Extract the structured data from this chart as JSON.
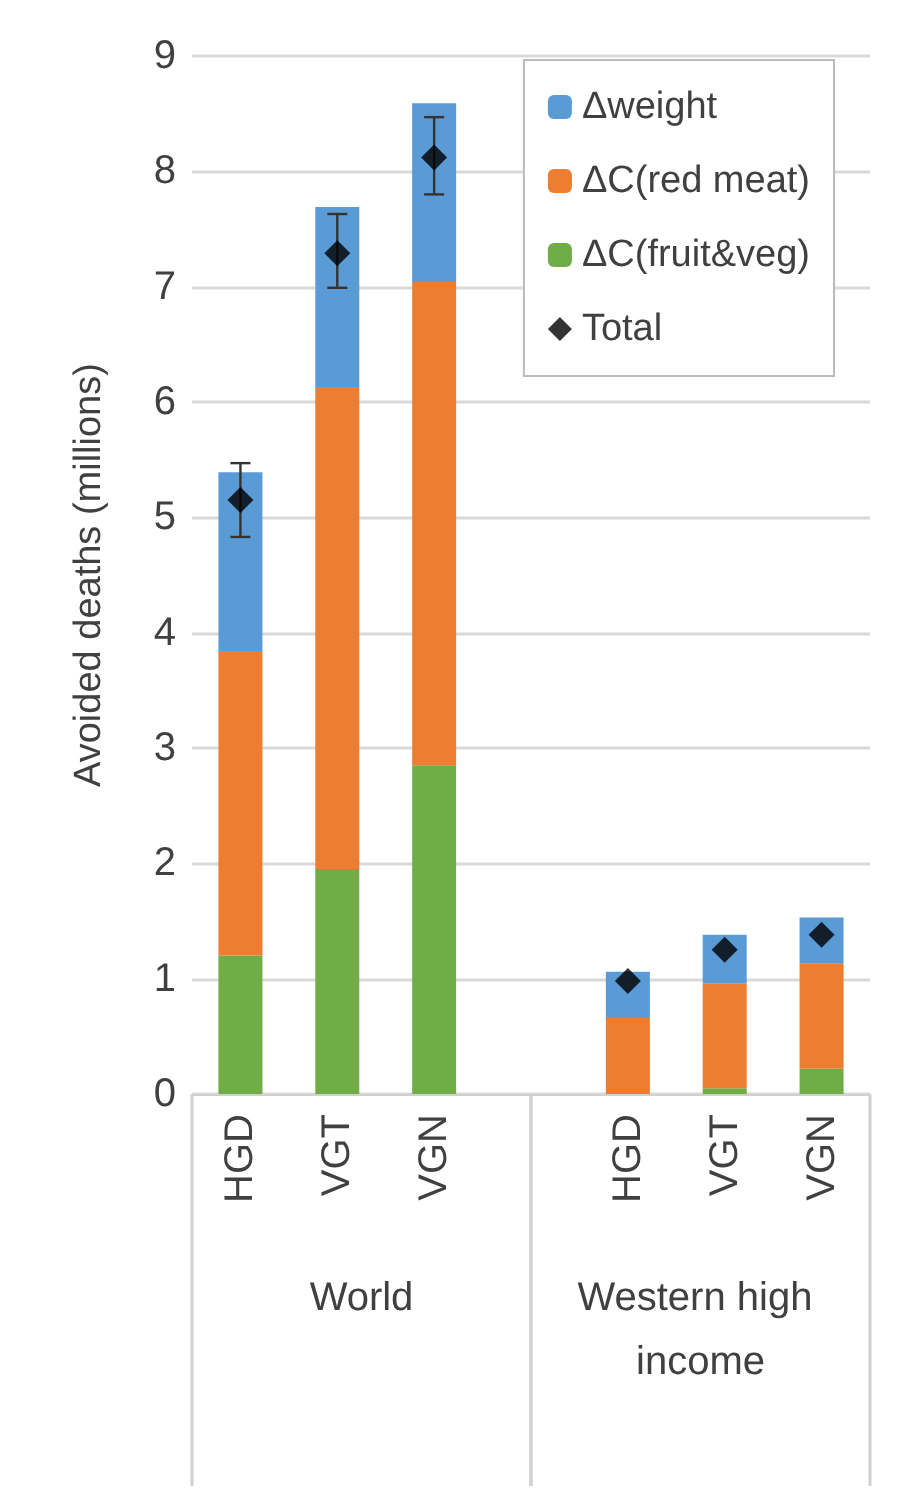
{
  "chart_data": {
    "type": "bar",
    "stacked": true,
    "ylabel": "Avoided deaths (millions)",
    "categories": [
      "HGD",
      "VGT",
      "VGN",
      null,
      "HGD",
      "VGT",
      "VGN"
    ],
    "series": [
      {
        "name": "ΔC(fruit&veg)",
        "color": "#70ad47",
        "values": [
          1.2,
          1.95,
          2.85,
          null,
          0,
          0.05,
          0.22
        ]
      },
      {
        "name": "ΔC(red meat)",
        "color": "#ed7d31",
        "values": [
          2.64,
          4.18,
          4.19,
          null,
          0.66,
          0.91,
          0.91
        ]
      },
      {
        "name": "Δweight",
        "color": "#5b9bd5",
        "values": [
          1.55,
          1.56,
          1.55,
          null,
          0.4,
          0.42,
          0.4
        ]
      },
      {
        "name": "Total",
        "type": "scatter",
        "marker": "diamond",
        "color": "#000000",
        "values": [
          5.15,
          7.29,
          8.12,
          null,
          0.98,
          1.25,
          1.38
        ],
        "errors": [
          [
            4.83,
            5.47
          ],
          [
            6.99,
            7.63
          ],
          [
            7.8,
            8.47
          ],
          null,
          null,
          null,
          null
        ]
      }
    ],
    "ylim": [
      0,
      9
    ],
    "yticks": [
      0,
      1,
      2,
      3,
      4,
      5,
      6,
      7,
      8,
      9
    ],
    "grid": "y",
    "legend": "top right",
    "annotations": [
      "World",
      "Western high income"
    ]
  }
}
